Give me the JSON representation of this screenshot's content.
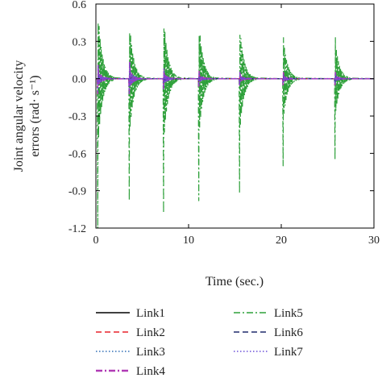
{
  "chart_data": {
    "type": "line",
    "title": "",
    "xlabel": "Time (sec.)",
    "ylabel_lines": [
      "Joint angular velocity",
      "errors (rad· s⁻¹)"
    ],
    "xlim": [
      0,
      30
    ],
    "ylim": [
      -1.2,
      0.6
    ],
    "xticks": [
      0,
      10,
      20,
      30
    ],
    "yticks": [
      -1.2,
      -0.9,
      -0.6,
      -0.3,
      0.0,
      0.3,
      0.6
    ],
    "ytick_labels": [
      "-1.2",
      "-0.9",
      "-0.6",
      "-0.3",
      "0.0",
      "0.3",
      "0.6"
    ],
    "grid": false,
    "legend_position": "bottom",
    "spike_times": [
      0.2,
      3.6,
      7.3,
      11.1,
      15.5,
      20.2,
      25.8
    ],
    "series": [
      {
        "name": "Link1",
        "color": "#000000",
        "dash": "solid",
        "peaks": [
          0.04,
          0.02,
          0.02,
          0.02,
          0.02,
          0.02,
          0.02
        ],
        "troughs": [
          -0.05,
          -0.03,
          -0.03,
          -0.03,
          -0.03,
          -0.03,
          -0.03
        ]
      },
      {
        "name": "Link2",
        "color": "#e8212a",
        "dash": "dashed",
        "peaks": [
          0.05,
          0.05,
          0.04,
          0.04,
          0.04,
          0.04,
          0.04
        ],
        "troughs": [
          -0.06,
          -0.05,
          -0.04,
          -0.04,
          -0.04,
          -0.04,
          -0.04
        ]
      },
      {
        "name": "Link3",
        "color": "#2f6db5",
        "dash": "dotted",
        "peaks": [
          0.06,
          0.06,
          0.05,
          0.05,
          0.05,
          0.05,
          0.05
        ],
        "troughs": [
          -0.07,
          -0.06,
          -0.05,
          -0.05,
          -0.05,
          -0.05,
          -0.05
        ]
      },
      {
        "name": "Link4",
        "color": "#b03ab5",
        "dash": "dashdot",
        "peaks": [
          0.12,
          0.14,
          0.08,
          0.06,
          0.05,
          0.05,
          0.05
        ],
        "troughs": [
          -0.12,
          -0.12,
          -0.08,
          -0.06,
          -0.05,
          -0.05,
          -0.05
        ]
      },
      {
        "name": "Link5",
        "color": "#2ea03a",
        "dash": "dashdot",
        "peaks": [
          0.45,
          0.37,
          0.4,
          0.34,
          0.35,
          0.33,
          0.33
        ],
        "troughs": [
          -1.2,
          -0.98,
          -1.08,
          -0.98,
          -0.92,
          -0.7,
          -0.65
        ]
      },
      {
        "name": "Link6",
        "color": "#1f2a6b",
        "dash": "dashed",
        "peaks": [
          0.04,
          0.04,
          0.03,
          0.03,
          0.03,
          0.03,
          0.03
        ],
        "troughs": [
          -0.05,
          -0.04,
          -0.03,
          -0.03,
          -0.03,
          -0.03,
          -0.03
        ]
      },
      {
        "name": "Link7",
        "color": "#6a4fd8",
        "dash": "dotted",
        "peaks": [
          0.1,
          0.13,
          0.08,
          0.05,
          0.05,
          0.04,
          0.04
        ],
        "troughs": [
          -0.1,
          -0.12,
          -0.08,
          -0.05,
          -0.05,
          -0.04,
          -0.04
        ]
      }
    ]
  }
}
